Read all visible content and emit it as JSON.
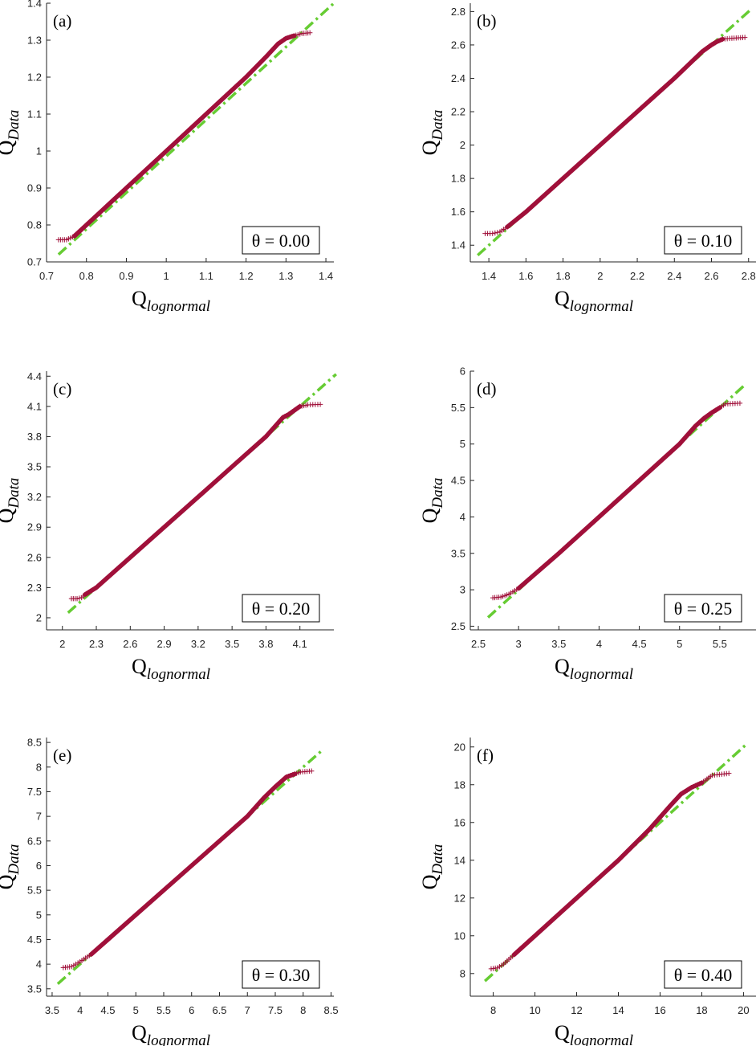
{
  "figure": {
    "colors": {
      "data": "#a0103a",
      "fit": "#66cc33",
      "axis": "#222222"
    },
    "marker": "+"
  },
  "chart_data": [
    {
      "type": "scatter",
      "panel_label": "(a)",
      "theta_label": "θ = 0.00",
      "xlabel": "Q",
      "xlabel_sub": "lognormal",
      "ylabel": "Q",
      "ylabel_sub": "Data",
      "xlim": [
        0.7,
        1.42
      ],
      "ylim": [
        0.7,
        1.4
      ],
      "xticks": [
        "0.7",
        "0.8",
        "0.9",
        "1",
        "1.1",
        "1.2",
        "1.3",
        "1.4"
      ],
      "xtick_values": [
        0.7,
        0.8,
        0.9,
        1.0,
        1.1,
        1.2,
        1.3,
        1.4
      ],
      "yticks": [
        "0.7",
        "0.8",
        "0.9",
        "1",
        "1.1",
        "1.2",
        "1.3",
        "1.4"
      ],
      "ytick_values": [
        0.7,
        0.8,
        0.9,
        1.0,
        1.1,
        1.2,
        1.3,
        1.4
      ],
      "fit_line": {
        "x": [
          0.73,
          1.42
        ],
        "y": [
          0.72,
          1.4
        ]
      },
      "data": [
        [
          0.73,
          0.76
        ],
        [
          0.75,
          0.76
        ],
        [
          0.76,
          0.765
        ],
        [
          0.77,
          0.77
        ],
        [
          0.8,
          0.8
        ],
        [
          0.9,
          0.9
        ],
        [
          1.0,
          1.0
        ],
        [
          1.1,
          1.1
        ],
        [
          1.2,
          1.2
        ],
        [
          1.25,
          1.255
        ],
        [
          1.28,
          1.29
        ],
        [
          1.3,
          1.305
        ],
        [
          1.32,
          1.312
        ],
        [
          1.34,
          1.318
        ],
        [
          1.36,
          1.32
        ]
      ]
    },
    {
      "type": "scatter",
      "panel_label": "(b)",
      "theta_label": "θ = 0.10",
      "xlabel": "Q",
      "xlabel_sub": "lognormal",
      "ylabel": "Q",
      "ylabel_sub": "Data",
      "xlim": [
        1.3,
        2.84
      ],
      "ylim": [
        1.3,
        2.85
      ],
      "xticks": [
        "1.4",
        "1.6",
        "1.8",
        "2",
        "2.2",
        "2.4",
        "2.6",
        "2.8"
      ],
      "xtick_values": [
        1.4,
        1.6,
        1.8,
        2.0,
        2.2,
        2.4,
        2.6,
        2.8
      ],
      "yticks": [
        "1.4",
        "1.6",
        "1.8",
        "2",
        "2.2",
        "2.4",
        "2.6",
        "2.8"
      ],
      "ytick_values": [
        1.4,
        1.6,
        1.8,
        2.0,
        2.2,
        2.4,
        2.6,
        2.8
      ],
      "fit_line": {
        "x": [
          1.34,
          2.82
        ],
        "y": [
          1.34,
          2.82
        ]
      },
      "data": [
        [
          1.38,
          1.47
        ],
        [
          1.42,
          1.47
        ],
        [
          1.46,
          1.48
        ],
        [
          1.5,
          1.51
        ],
        [
          1.6,
          1.6
        ],
        [
          1.8,
          1.8
        ],
        [
          2.0,
          2.0
        ],
        [
          2.2,
          2.2
        ],
        [
          2.4,
          2.4
        ],
        [
          2.55,
          2.56
        ],
        [
          2.6,
          2.6
        ],
        [
          2.63,
          2.62
        ],
        [
          2.66,
          2.635
        ],
        [
          2.71,
          2.64
        ],
        [
          2.78,
          2.645
        ]
      ]
    },
    {
      "type": "scatter",
      "panel_label": "(c)",
      "theta_label": "θ = 0.20",
      "xlabel": "Q",
      "xlabel_sub": "lognormal",
      "ylabel": "Q",
      "ylabel_sub": "Data",
      "xlim": [
        1.86,
        4.4
      ],
      "ylim": [
        1.88,
        4.45
      ],
      "xticks": [
        "2",
        "2.3",
        "2.6",
        "2.9",
        "3.2",
        "3.5",
        "3.8",
        "4.1"
      ],
      "xtick_values": [
        2.0,
        2.3,
        2.6,
        2.9,
        3.2,
        3.5,
        3.8,
        4.1
      ],
      "yticks": [
        "2",
        "2.3",
        "2.6",
        "2.9",
        "3.2",
        "3.5",
        "3.8",
        "4.1",
        "4.4"
      ],
      "ytick_values": [
        2.0,
        2.3,
        2.6,
        2.9,
        3.2,
        3.5,
        3.8,
        4.1,
        4.4
      ],
      "fit_line": {
        "x": [
          2.05,
          4.42
        ],
        "y": [
          2.05,
          4.42
        ]
      },
      "data": [
        [
          2.08,
          2.19
        ],
        [
          2.13,
          2.19
        ],
        [
          2.17,
          2.2
        ],
        [
          2.2,
          2.23
        ],
        [
          2.3,
          2.3
        ],
        [
          2.6,
          2.6
        ],
        [
          2.9,
          2.9
        ],
        [
          3.2,
          3.2
        ],
        [
          3.5,
          3.5
        ],
        [
          3.8,
          3.8
        ],
        [
          3.95,
          3.99
        ],
        [
          4.0,
          4.02
        ],
        [
          4.05,
          4.06
        ],
        [
          4.1,
          4.1
        ],
        [
          4.17,
          4.115
        ],
        [
          4.28,
          4.12
        ]
      ]
    },
    {
      "type": "scatter",
      "panel_label": "(d)",
      "theta_label": "θ = 0.25",
      "xlabel": "Q",
      "xlabel_sub": "lognormal",
      "ylabel": "Q",
      "ylabel_sub": "Data",
      "xlim": [
        2.4,
        5.95
      ],
      "ylim": [
        2.45,
        6.0
      ],
      "xticks": [
        "2.5",
        "3",
        "3.5",
        "4",
        "4.5",
        "5",
        "5.5"
      ],
      "xtick_values": [
        2.5,
        3.0,
        3.5,
        4.0,
        4.5,
        5.0,
        5.5
      ],
      "yticks": [
        "2.5",
        "3",
        "3.5",
        "4",
        "4.5",
        "5",
        "5.5",
        "6"
      ],
      "ytick_values": [
        2.5,
        3.0,
        3.5,
        4.0,
        4.5,
        5.0,
        5.5,
        6.0
      ],
      "fit_line": {
        "x": [
          2.62,
          5.82
        ],
        "y": [
          2.62,
          5.82
        ]
      },
      "data": [
        [
          2.68,
          2.89
        ],
        [
          2.78,
          2.9
        ],
        [
          2.88,
          2.94
        ],
        [
          3.0,
          3.02
        ],
        [
          3.5,
          3.5
        ],
        [
          4.0,
          4.0
        ],
        [
          4.5,
          4.5
        ],
        [
          5.0,
          5.0
        ],
        [
          5.2,
          5.25
        ],
        [
          5.3,
          5.35
        ],
        [
          5.4,
          5.43
        ],
        [
          5.5,
          5.5
        ],
        [
          5.57,
          5.55
        ],
        [
          5.75,
          5.56
        ]
      ]
    },
    {
      "type": "scatter",
      "panel_label": "(e)",
      "theta_label": "θ = 0.30",
      "xlabel": "Q",
      "xlabel_sub": "lognormal",
      "ylabel": "Q",
      "ylabel_sub": "Data",
      "xlim": [
        3.4,
        8.55
      ],
      "ylim": [
        3.35,
        8.6
      ],
      "xticks": [
        "3.5",
        "4",
        "4.5",
        "5",
        "5.5",
        "6",
        "6.5",
        "7",
        "7.5",
        "8",
        "8.5"
      ],
      "xtick_values": [
        3.5,
        4.0,
        4.5,
        5.0,
        5.5,
        6.0,
        6.5,
        7.0,
        7.5,
        8.0,
        8.5
      ],
      "yticks": [
        "3.5",
        "4",
        "4.5",
        "5",
        "5.5",
        "6",
        "6.5",
        "7",
        "7.5",
        "8",
        "8.5"
      ],
      "ytick_values": [
        3.5,
        4.0,
        4.5,
        5.0,
        5.5,
        6.0,
        6.5,
        7.0,
        7.5,
        8.0,
        8.5
      ],
      "fit_line": {
        "x": [
          3.6,
          8.35
        ],
        "y": [
          3.6,
          8.35
        ]
      },
      "data": [
        [
          3.7,
          3.93
        ],
        [
          3.85,
          3.95
        ],
        [
          4.0,
          4.05
        ],
        [
          4.2,
          4.2
        ],
        [
          4.5,
          4.5
        ],
        [
          5.0,
          5.0
        ],
        [
          6.0,
          6.0
        ],
        [
          7.0,
          7.0
        ],
        [
          7.3,
          7.38
        ],
        [
          7.5,
          7.6
        ],
        [
          7.7,
          7.8
        ],
        [
          7.85,
          7.86
        ],
        [
          7.95,
          7.9
        ],
        [
          8.15,
          7.92
        ]
      ]
    },
    {
      "type": "scatter",
      "panel_label": "(f)",
      "theta_label": "θ = 0.40",
      "xlabel": "Q",
      "xlabel_sub": "lognormal",
      "ylabel": "Q",
      "ylabel_sub": "Data",
      "xlim": [
        6.9,
        20.6
      ],
      "ylim": [
        6.8,
        20.5
      ],
      "xticks": [
        "8",
        "10",
        "12",
        "14",
        "16",
        "18",
        "20"
      ],
      "xtick_values": [
        8,
        10,
        12,
        14,
        16,
        18,
        20
      ],
      "yticks": [
        "8",
        "10",
        "12",
        "14",
        "16",
        "18",
        "20"
      ],
      "ytick_values": [
        8,
        10,
        12,
        14,
        16,
        18,
        20
      ],
      "fit_line": {
        "x": [
          7.6,
          20.2
        ],
        "y": [
          7.6,
          20.2
        ]
      },
      "data": [
        [
          7.9,
          8.25
        ],
        [
          8.2,
          8.3
        ],
        [
          8.5,
          8.5
        ],
        [
          9,
          9
        ],
        [
          10,
          10
        ],
        [
          12,
          12
        ],
        [
          14,
          14
        ],
        [
          15.5,
          15.65
        ],
        [
          16.5,
          16.9
        ],
        [
          17,
          17.5
        ],
        [
          17.5,
          17.85
        ],
        [
          18,
          18.1
        ],
        [
          18.5,
          18.5
        ],
        [
          19.3,
          18.6
        ]
      ]
    }
  ]
}
